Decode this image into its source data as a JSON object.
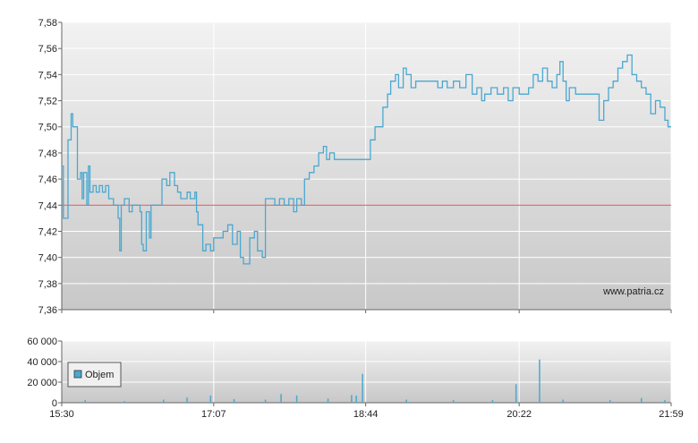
{
  "colors": {
    "price_line": "#4aa8d0",
    "reference_line": "#e05050",
    "volume_bar": "#4aa8d0",
    "grid": "#ffffff",
    "axis": "#666666",
    "plot_bg_top": "#f2f2f2",
    "plot_bg_bottom": "#c8c8c8"
  },
  "watermark": "www.patria.cz",
  "legend_label": "Objem",
  "chart_data": [
    {
      "type": "line",
      "ylim": [
        7.36,
        7.58
      ],
      "y_ticks": [
        "7,58",
        "7,56",
        "7,54",
        "7,52",
        "7,50",
        "7,48",
        "7,46",
        "7,44",
        "7,42",
        "7,40",
        "7,38",
        "7,36"
      ],
      "x_ticks": [
        "15:30",
        "17:07",
        "18:44",
        "20:22",
        "21:59"
      ],
      "xlim": [
        "15:30",
        "21:59"
      ],
      "grid": true,
      "reference_line": 7.44,
      "series": [
        {
          "values": [
            [
              "15:30",
              7.47
            ],
            [
              "15:31",
              7.43
            ],
            [
              "15:32",
              7.43
            ],
            [
              "15:34",
              7.49
            ],
            [
              "15:36",
              7.51
            ],
            [
              "15:37",
              7.5
            ],
            [
              "15:38",
              7.5
            ],
            [
              "15:40",
              7.46
            ],
            [
              "15:42",
              7.465
            ],
            [
              "15:43",
              7.445
            ],
            [
              "15:44",
              7.465
            ],
            [
              "15:46",
              7.44
            ],
            [
              "15:47",
              7.47
            ],
            [
              "15:48",
              7.45
            ],
            [
              "15:50",
              7.455
            ],
            [
              "15:52",
              7.45
            ],
            [
              "15:54",
              7.455
            ],
            [
              "15:56",
              7.45
            ],
            [
              "15:58",
              7.455
            ],
            [
              "16:00",
              7.445
            ],
            [
              "16:03",
              7.44
            ],
            [
              "16:06",
              7.43
            ],
            [
              "16:07",
              7.405
            ],
            [
              "16:08",
              7.44
            ],
            [
              "16:10",
              7.445
            ],
            [
              "16:13",
              7.435
            ],
            [
              "16:15",
              7.44
            ],
            [
              "16:17",
              7.44
            ],
            [
              "16:20",
              7.435
            ],
            [
              "16:21",
              7.41
            ],
            [
              "16:22",
              7.405
            ],
            [
              "16:24",
              7.435
            ],
            [
              "16:26",
              7.415
            ],
            [
              "16:27",
              7.44
            ],
            [
              "16:30",
              7.44
            ],
            [
              "16:33",
              7.44
            ],
            [
              "16:34",
              7.46
            ],
            [
              "16:37",
              7.455
            ],
            [
              "16:39",
              7.465
            ],
            [
              "16:42",
              7.455
            ],
            [
              "16:44",
              7.45
            ],
            [
              "16:46",
              7.445
            ],
            [
              "16:48",
              7.445
            ],
            [
              "16:50",
              7.45
            ],
            [
              "16:52",
              7.445
            ],
            [
              "16:55",
              7.45
            ],
            [
              "16:56",
              7.435
            ],
            [
              "16:57",
              7.425
            ],
            [
              "16:58",
              7.425
            ],
            [
              "17:00",
              7.405
            ],
            [
              "17:02",
              7.41
            ],
            [
              "17:05",
              7.405
            ],
            [
              "17:07",
              7.415
            ],
            [
              "17:10",
              7.415
            ],
            [
              "17:13",
              7.42
            ],
            [
              "17:16",
              7.425
            ],
            [
              "17:19",
              7.41
            ],
            [
              "17:22",
              7.42
            ],
            [
              "17:24",
              7.4
            ],
            [
              "17:26",
              7.395
            ],
            [
              "17:28",
              7.395
            ],
            [
              "17:30",
              7.415
            ],
            [
              "17:33",
              7.42
            ],
            [
              "17:35",
              7.405
            ],
            [
              "17:38",
              7.4
            ],
            [
              "17:40",
              7.445
            ],
            [
              "17:43",
              7.445
            ],
            [
              "17:46",
              7.44
            ],
            [
              "17:49",
              7.445
            ],
            [
              "17:52",
              7.44
            ],
            [
              "17:55",
              7.445
            ],
            [
              "17:58",
              7.435
            ],
            [
              "18:00",
              7.445
            ],
            [
              "18:03",
              7.44
            ],
            [
              "18:05",
              7.46
            ],
            [
              "18:08",
              7.465
            ],
            [
              "18:11",
              7.47
            ],
            [
              "18:14",
              7.48
            ],
            [
              "18:17",
              7.485
            ],
            [
              "18:19",
              7.475
            ],
            [
              "18:21",
              7.48
            ],
            [
              "18:24",
              7.475
            ],
            [
              "18:26",
              7.475
            ],
            [
              "18:30",
              7.475
            ],
            [
              "18:35",
              7.475
            ],
            [
              "18:40",
              7.475
            ],
            [
              "18:44",
              7.475
            ],
            [
              "18:47",
              7.49
            ],
            [
              "18:50",
              7.5
            ],
            [
              "18:52",
              7.5
            ],
            [
              "18:55",
              7.515
            ],
            [
              "18:58",
              7.525
            ],
            [
              "19:00",
              7.535
            ],
            [
              "19:03",
              7.54
            ],
            [
              "19:05",
              7.53
            ],
            [
              "19:08",
              7.545
            ],
            [
              "19:10",
              7.54
            ],
            [
              "19:13",
              7.53
            ],
            [
              "19:16",
              7.535
            ],
            [
              "19:20",
              7.535
            ],
            [
              "19:25",
              7.535
            ],
            [
              "19:30",
              7.53
            ],
            [
              "19:33",
              7.535
            ],
            [
              "19:36",
              7.53
            ],
            [
              "19:40",
              7.535
            ],
            [
              "19:44",
              7.53
            ],
            [
              "19:48",
              7.54
            ],
            [
              "19:52",
              7.525
            ],
            [
              "19:55",
              7.53
            ],
            [
              "19:58",
              7.52
            ],
            [
              "20:00",
              7.525
            ],
            [
              "20:04",
              7.53
            ],
            [
              "20:08",
              7.525
            ],
            [
              "20:12",
              7.53
            ],
            [
              "20:15",
              7.52
            ],
            [
              "20:18",
              7.53
            ],
            [
              "20:22",
              7.525
            ],
            [
              "20:25",
              7.525
            ],
            [
              "20:28",
              7.53
            ],
            [
              "20:31",
              7.54
            ],
            [
              "20:34",
              7.535
            ],
            [
              "20:37",
              7.545
            ],
            [
              "20:40",
              7.535
            ],
            [
              "20:43",
              7.53
            ],
            [
              "20:46",
              7.54
            ],
            [
              "20:48",
              7.55
            ],
            [
              "20:50",
              7.535
            ],
            [
              "20:52",
              7.52
            ],
            [
              "20:54",
              7.53
            ],
            [
              "20:58",
              7.525
            ],
            [
              "21:02",
              7.525
            ],
            [
              "21:06",
              7.525
            ],
            [
              "21:10",
              7.525
            ],
            [
              "21:13",
              7.505
            ],
            [
              "21:16",
              7.52
            ],
            [
              "21:19",
              7.53
            ],
            [
              "21:22",
              7.535
            ],
            [
              "21:25",
              7.545
            ],
            [
              "21:28",
              7.55
            ],
            [
              "21:31",
              7.555
            ],
            [
              "21:34",
              7.54
            ],
            [
              "21:37",
              7.535
            ],
            [
              "21:40",
              7.53
            ],
            [
              "21:43",
              7.525
            ],
            [
              "21:46",
              7.51
            ],
            [
              "21:49",
              7.52
            ],
            [
              "21:52",
              7.515
            ],
            [
              "21:55",
              7.505
            ],
            [
              "21:57",
              7.5
            ],
            [
              "21:59",
              7.5
            ]
          ]
        }
      ]
    },
    {
      "type": "bar",
      "ylim": [
        0,
        60000
      ],
      "y_ticks": [
        "60 000",
        "40 000",
        "20 000",
        "0"
      ],
      "x_ticks": [
        "15:30",
        "17:07",
        "18:44",
        "20:22",
        "21:59"
      ],
      "grid": true,
      "legend": {
        "placement": "top-left"
      },
      "series": [
        {
          "name": "Objem",
          "values": [
            [
              "15:45",
              2500
            ],
            [
              "16:10",
              1500
            ],
            [
              "16:35",
              3000
            ],
            [
              "16:50",
              5000
            ],
            [
              "17:05",
              7000
            ],
            [
              "17:20",
              3500
            ],
            [
              "17:40",
              3000
            ],
            [
              "17:50",
              8500
            ],
            [
              "18:00",
              7000
            ],
            [
              "18:20",
              4000
            ],
            [
              "18:35",
              7500
            ],
            [
              "18:38",
              7000
            ],
            [
              "18:42",
              28000
            ],
            [
              "19:10",
              3000
            ],
            [
              "19:40",
              2500
            ],
            [
              "20:05",
              2500
            ],
            [
              "20:20",
              18000
            ],
            [
              "20:35",
              42000
            ],
            [
              "20:50",
              3000
            ],
            [
              "21:20",
              2500
            ],
            [
              "21:40",
              4500
            ],
            [
              "21:55",
              2500
            ]
          ]
        }
      ]
    }
  ]
}
